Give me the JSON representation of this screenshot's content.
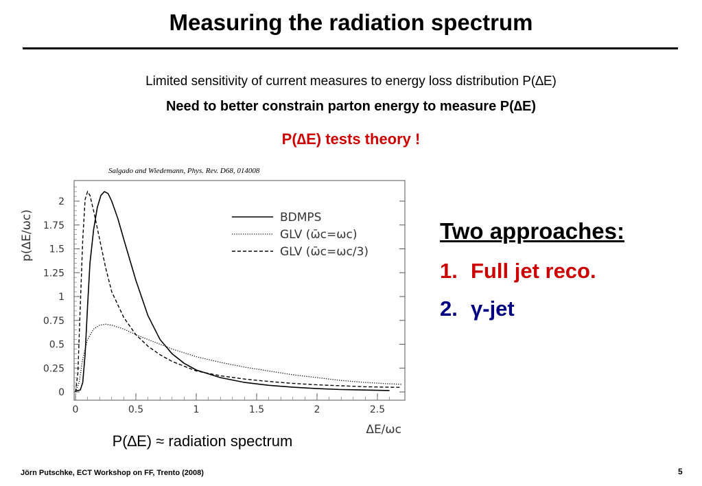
{
  "slide": {
    "title": "Measuring the radiation spectrum",
    "line1": "Limited sensitivity of current measures to energy loss distribution P(∆E)",
    "line2": "Need to better constrain parton energy to measure P(∆E)",
    "line3": "P(∆E) tests theory !",
    "citation": "Salgado and Wiedemann, Phys. Rev. D68, 014008",
    "caption": "P(∆E) ≈ radiation spectrum",
    "approaches_heading": "Two approaches:",
    "items": [
      {
        "num": "1.",
        "text": "Full jet reco."
      },
      {
        "num": "2.",
        "text": "γ-jet"
      }
    ],
    "footer": "Jörn Putschke, ECT Workshop on FF, Trento (2008)",
    "page_number": "5"
  },
  "chart_data": {
    "type": "line",
    "xlabel": "ΔE/ωc",
    "ylabel": "p(ΔE/ωc)",
    "xlim": [
      0,
      2.7
    ],
    "ylim": [
      0,
      2.2
    ],
    "xticks": [
      "0",
      "0.5",
      "1",
      "1.5",
      "2",
      "2.5"
    ],
    "yticks": [
      "0",
      "0.25",
      "0.5",
      "0.75",
      "1",
      "1.25",
      "1.5",
      "1.75",
      "2"
    ],
    "series": [
      {
        "name": "BDMPS",
        "style": "solid",
        "points": [
          [
            0,
            0.01
          ],
          [
            0.04,
            0.02
          ],
          [
            0.06,
            0.1
          ],
          [
            0.08,
            0.4
          ],
          [
            0.1,
            0.9
          ],
          [
            0.12,
            1.35
          ],
          [
            0.15,
            1.7
          ],
          [
            0.18,
            1.93
          ],
          [
            0.21,
            2.06
          ],
          [
            0.24,
            2.1
          ],
          [
            0.27,
            2.08
          ],
          [
            0.3,
            2.0
          ],
          [
            0.35,
            1.82
          ],
          [
            0.4,
            1.6
          ],
          [
            0.5,
            1.17
          ],
          [
            0.6,
            0.8
          ],
          [
            0.7,
            0.55
          ],
          [
            0.8,
            0.4
          ],
          [
            0.9,
            0.3
          ],
          [
            1.0,
            0.23
          ],
          [
            1.2,
            0.15
          ],
          [
            1.4,
            0.1
          ],
          [
            1.6,
            0.07
          ],
          [
            1.8,
            0.05
          ],
          [
            2.0,
            0.035
          ],
          [
            2.2,
            0.025
          ],
          [
            2.4,
            0.02
          ],
          [
            2.6,
            0.015
          ]
        ]
      },
      {
        "name": "GLV (ω̄c=ωc)",
        "style": "dotted",
        "points": [
          [
            0,
            0.0
          ],
          [
            0.03,
            0.1
          ],
          [
            0.06,
            0.35
          ],
          [
            0.1,
            0.55
          ],
          [
            0.15,
            0.66
          ],
          [
            0.2,
            0.7
          ],
          [
            0.25,
            0.71
          ],
          [
            0.3,
            0.7
          ],
          [
            0.4,
            0.66
          ],
          [
            0.5,
            0.6
          ],
          [
            0.6,
            0.55
          ],
          [
            0.7,
            0.5
          ],
          [
            0.8,
            0.45
          ],
          [
            0.9,
            0.41
          ],
          [
            1.0,
            0.37
          ],
          [
            1.2,
            0.31
          ],
          [
            1.4,
            0.26
          ],
          [
            1.6,
            0.22
          ],
          [
            1.8,
            0.18
          ],
          [
            2.0,
            0.15
          ],
          [
            2.2,
            0.12
          ],
          [
            2.4,
            0.1
          ],
          [
            2.6,
            0.085
          ],
          [
            2.7,
            0.08
          ]
        ]
      },
      {
        "name": "GLV (ω̄c=ωc/3)",
        "style": "dashed",
        "points": [
          [
            0,
            0.0
          ],
          [
            0.02,
            0.2
          ],
          [
            0.04,
            0.9
          ],
          [
            0.06,
            1.6
          ],
          [
            0.08,
            2.02
          ],
          [
            0.1,
            2.1
          ],
          [
            0.12,
            2.06
          ],
          [
            0.15,
            1.9
          ],
          [
            0.2,
            1.6
          ],
          [
            0.25,
            1.3
          ],
          [
            0.3,
            1.05
          ],
          [
            0.4,
            0.78
          ],
          [
            0.5,
            0.6
          ],
          [
            0.6,
            0.48
          ],
          [
            0.7,
            0.39
          ],
          [
            0.8,
            0.32
          ],
          [
            0.9,
            0.27
          ],
          [
            1.0,
            0.22
          ],
          [
            1.2,
            0.17
          ],
          [
            1.4,
            0.135
          ],
          [
            1.6,
            0.11
          ],
          [
            1.8,
            0.09
          ],
          [
            2.0,
            0.075
          ],
          [
            2.2,
            0.065
          ],
          [
            2.4,
            0.055
          ],
          [
            2.6,
            0.05
          ],
          [
            2.7,
            0.048
          ]
        ]
      }
    ],
    "legend_position": "top-right"
  }
}
